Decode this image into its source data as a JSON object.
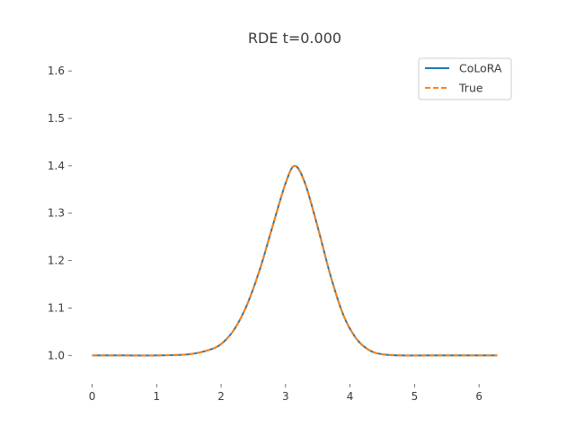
{
  "chart_data": {
    "type": "line",
    "title": "RDE t=0.000",
    "xlabel": "",
    "ylabel": "",
    "xlim": [
      -0.314,
      6.597
    ],
    "ylim": [
      0.94,
      1.64
    ],
    "x_ticks": [
      0,
      1,
      2,
      3,
      4,
      5,
      6
    ],
    "y_ticks": [
      1.0,
      1.1,
      1.2,
      1.3,
      1.4,
      1.5,
      1.6
    ],
    "x_tick_labels": [
      "0",
      "1",
      "2",
      "3",
      "4",
      "5",
      "6"
    ],
    "y_tick_labels": [
      "1.0",
      "1.1",
      "1.2",
      "1.3",
      "1.4",
      "1.5",
      "1.6"
    ],
    "grid": false,
    "legend_position": "top-right",
    "series": [
      {
        "name": "CoLoRA",
        "color": "#1f77b4",
        "style": "solid",
        "x": [
          0,
          0.5,
          1.0,
          1.5,
          1.8,
          2.0,
          2.2,
          2.4,
          2.6,
          2.8,
          3.0,
          3.1416,
          3.3,
          3.5,
          3.7,
          3.9,
          4.1,
          4.3,
          4.5,
          4.8,
          5.2,
          5.7,
          6.2832
        ],
        "y": [
          1.0,
          1.0,
          1.0,
          1.0025,
          1.011,
          1.024,
          1.054,
          1.106,
          1.181,
          1.273,
          1.363,
          1.4,
          1.364,
          1.27,
          1.167,
          1.084,
          1.035,
          1.011,
          1.0025,
          1.0,
          1.0,
          1.0,
          1.0
        ]
      },
      {
        "name": "True",
        "color": "#ff7f0e",
        "style": "dashed",
        "x": [
          0,
          0.5,
          1.0,
          1.5,
          1.8,
          2.0,
          2.2,
          2.4,
          2.6,
          2.8,
          3.0,
          3.1416,
          3.3,
          3.5,
          3.7,
          3.9,
          4.1,
          4.3,
          4.5,
          4.8,
          5.2,
          5.7,
          6.2832
        ],
        "y": [
          1.0,
          1.0,
          1.0,
          1.0025,
          1.011,
          1.024,
          1.054,
          1.106,
          1.181,
          1.273,
          1.363,
          1.4,
          1.364,
          1.27,
          1.167,
          1.084,
          1.035,
          1.011,
          1.0025,
          1.0,
          1.0,
          1.0,
          1.0
        ]
      }
    ]
  }
}
